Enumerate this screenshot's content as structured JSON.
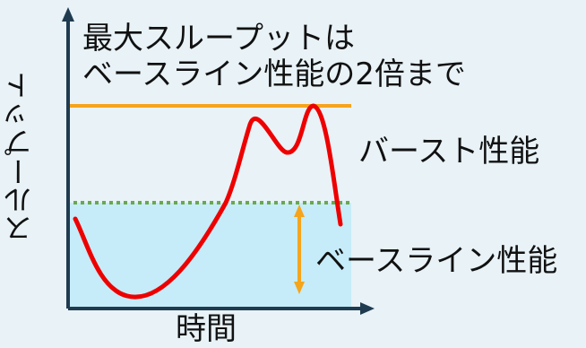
{
  "caption": {
    "line1": "最大スループットは",
    "line2": "ベースライン性能の2倍まで"
  },
  "labels": {
    "burst": "バースト性能",
    "baseline": "ベースライン性能",
    "y_axis": "スループット",
    "x_axis": "時間"
  },
  "colors": {
    "background": "#e8f2f7",
    "baseline_area": "#c5ecf8",
    "max_line": "#f5a41c",
    "baseline_dotted": "#6aa84f",
    "curve": "#ee0000",
    "range_arrow": "#f5a41c",
    "axis": "#1f3b50"
  }
}
